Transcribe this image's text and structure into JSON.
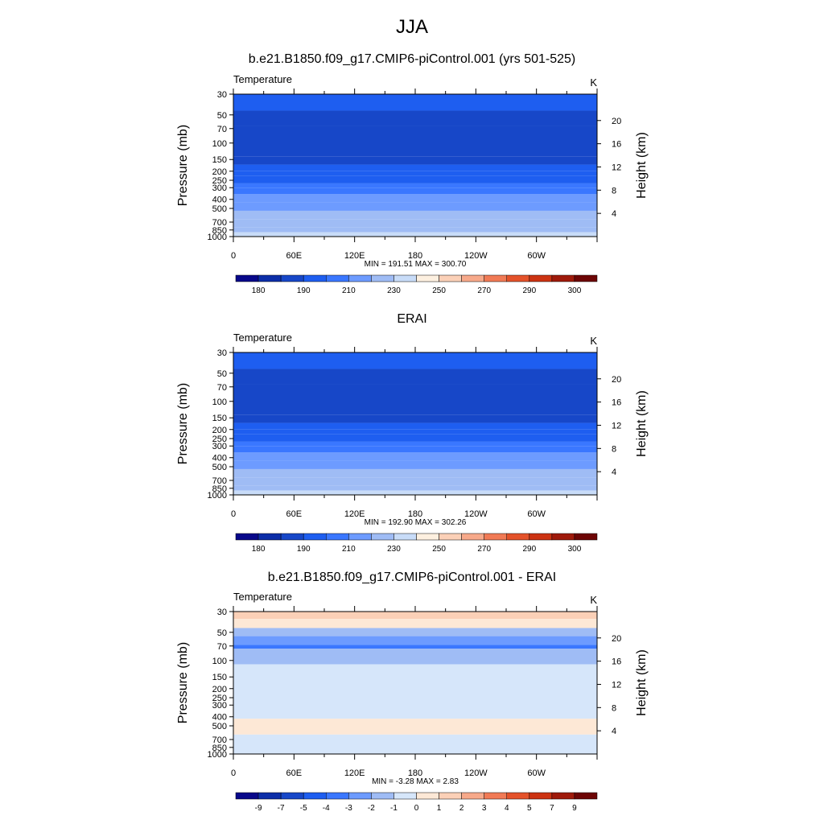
{
  "page": {
    "title": "JJA"
  },
  "panels": [
    {
      "title": "b.e21.B1850.f09_g17.CMIP6-piControl.001 (yrs 501-525)",
      "variable": "Temperature",
      "units": "K",
      "minmax": "MIN = 191.51  MAX = 300.70",
      "bar_labels": [
        "180",
        "190",
        "210",
        "230",
        "250",
        "270",
        "290",
        "300"
      ]
    },
    {
      "title": "ERAI",
      "variable": "Temperature",
      "units": "K",
      "minmax": "MIN = 192.90  MAX = 302.26",
      "bar_labels": [
        "180",
        "190",
        "210",
        "230",
        "250",
        "270",
        "290",
        "300"
      ]
    },
    {
      "title": "b.e21.B1850.f09_g17.CMIP6-piControl.001 - ERAI",
      "variable": "Temperature",
      "units": "K",
      "minmax": "MIN =  -3.28  MAX =   2.83",
      "bar_labels": [
        "-9",
        "-7",
        "-5",
        "-4",
        "-3",
        "-2",
        "-1",
        "0",
        "1",
        "2",
        "3",
        "4",
        "5",
        "7",
        "9"
      ]
    }
  ],
  "axes": {
    "ylabel_left": "Pressure (mb)",
    "ylabel_right": "Height (km)",
    "pressure_ticks": [
      "30",
      "50",
      "70",
      "100",
      "150",
      "200",
      "250",
      "300",
      "400",
      "500",
      "700",
      "850",
      "1000"
    ],
    "height_ticks": [
      "20",
      "16",
      "12",
      "8",
      "4"
    ],
    "lon_ticks": [
      "0",
      "60E",
      "120E",
      "180",
      "120W",
      "60W"
    ]
  },
  "colors": {
    "temp_palette": [
      "#08088a",
      "#0c2ea8",
      "#1747c8",
      "#1e5ef0",
      "#3a77ff",
      "#6d9bff",
      "#9fbcf5",
      "#c8dcf8",
      "#fdf0e0",
      "#fbd0b7",
      "#f7a98a",
      "#f17a55",
      "#e4522a",
      "#cc3312",
      "#9f1a0b",
      "#6d0505"
    ],
    "diff_palette": [
      "#08088a",
      "#0c2ea8",
      "#1747c8",
      "#1e5ef0",
      "#3a77ff",
      "#6d9bff",
      "#9fbcf5",
      "#d6e6fa",
      "#fde8d6",
      "#fbd0b7",
      "#f7a98a",
      "#f17a55",
      "#e4522a",
      "#cc3312",
      "#9f1a0b",
      "#6d0505"
    ]
  },
  "chart_data": [
    {
      "type": "heatmap",
      "title": "b.e21.B1850.f09_g17.CMIP6-piControl.001 (yrs 501-525)",
      "xlabel": "",
      "ylabel": "Pressure (mb)",
      "ylabel_right": "Height (km)",
      "x_ticks": [
        "0",
        "60E",
        "120E",
        "180",
        "120W",
        "60W"
      ],
      "xlim": [
        0,
        360
      ],
      "ylim": [
        1000,
        30
      ],
      "y_scale": "log",
      "levels": [
        180,
        190,
        210,
        230,
        250,
        270,
        290,
        300
      ],
      "units": "K",
      "min": 191.51,
      "max": 300.7,
      "bands": [
        {
          "p_top": 30,
          "p_bottom": 45,
          "value": 215
        },
        {
          "p_top": 45,
          "p_bottom": 65,
          "value": 208
        },
        {
          "p_top": 65,
          "p_bottom": 140,
          "value": 200
        },
        {
          "p_top": 140,
          "p_bottom": 170,
          "value": 207
        },
        {
          "p_top": 170,
          "p_bottom": 200,
          "value": 214
        },
        {
          "p_top": 200,
          "p_bottom": 225,
          "value": 218
        },
        {
          "p_top": 225,
          "p_bottom": 270,
          "value": 225
        },
        {
          "p_top": 270,
          "p_bottom": 300,
          "value": 235
        },
        {
          "p_top": 300,
          "p_bottom": 350,
          "value": 245
        },
        {
          "p_top": 350,
          "p_bottom": 430,
          "value": 255
        },
        {
          "p_top": 430,
          "p_bottom": 530,
          "value": 262
        },
        {
          "p_top": 530,
          "p_bottom": 650,
          "value": 270
        },
        {
          "p_top": 650,
          "p_bottom": 800,
          "value": 278
        },
        {
          "p_top": 800,
          "p_bottom": 900,
          "value": 286
        },
        {
          "p_top": 900,
          "p_bottom": 1000,
          "value": 294
        }
      ]
    },
    {
      "type": "heatmap",
      "title": "ERAI",
      "xlabel": "",
      "ylabel": "Pressure (mb)",
      "ylabel_right": "Height (km)",
      "x_ticks": [
        "0",
        "60E",
        "120E",
        "180",
        "120W",
        "60W"
      ],
      "xlim": [
        0,
        360
      ],
      "ylim": [
        1000,
        30
      ],
      "y_scale": "log",
      "levels": [
        180,
        190,
        210,
        230,
        250,
        270,
        290,
        300
      ],
      "units": "K",
      "min": 192.9,
      "max": 302.26,
      "bands": [
        {
          "p_top": 30,
          "p_bottom": 45,
          "value": 215
        },
        {
          "p_top": 45,
          "p_bottom": 65,
          "value": 208
        },
        {
          "p_top": 65,
          "p_bottom": 140,
          "value": 200
        },
        {
          "p_top": 140,
          "p_bottom": 170,
          "value": 207
        },
        {
          "p_top": 170,
          "p_bottom": 200,
          "value": 214
        },
        {
          "p_top": 200,
          "p_bottom": 225,
          "value": 218
        },
        {
          "p_top": 225,
          "p_bottom": 270,
          "value": 225
        },
        {
          "p_top": 270,
          "p_bottom": 300,
          "value": 235
        },
        {
          "p_top": 300,
          "p_bottom": 350,
          "value": 245
        },
        {
          "p_top": 350,
          "p_bottom": 430,
          "value": 255
        },
        {
          "p_top": 430,
          "p_bottom": 530,
          "value": 262
        },
        {
          "p_top": 530,
          "p_bottom": 650,
          "value": 270
        },
        {
          "p_top": 650,
          "p_bottom": 800,
          "value": 278
        },
        {
          "p_top": 800,
          "p_bottom": 900,
          "value": 286
        },
        {
          "p_top": 900,
          "p_bottom": 1000,
          "value": 295
        }
      ]
    },
    {
      "type": "heatmap",
      "title": "b.e21.B1850.f09_g17.CMIP6-piControl.001 - ERAI",
      "xlabel": "",
      "ylabel": "Pressure (mb)",
      "ylabel_right": "Height (km)",
      "x_ticks": [
        "0",
        "60E",
        "120E",
        "180",
        "120W",
        "60W"
      ],
      "xlim": [
        0,
        360
      ],
      "ylim": [
        1000,
        30
      ],
      "y_scale": "log",
      "levels": [
        -9,
        -7,
        -5,
        -4,
        -3,
        -2,
        -1,
        0,
        1,
        2,
        3,
        4,
        5,
        7,
        9
      ],
      "units": "K",
      "min": -3.28,
      "max": 2.83,
      "bands": [
        {
          "p_top": 30,
          "p_bottom": 36,
          "value": 1.5
        },
        {
          "p_top": 36,
          "p_bottom": 45,
          "value": 0.5
        },
        {
          "p_top": 45,
          "p_bottom": 55,
          "value": -1.5
        },
        {
          "p_top": 55,
          "p_bottom": 68,
          "value": -2.5
        },
        {
          "p_top": 68,
          "p_bottom": 75,
          "value": -3.5
        },
        {
          "p_top": 75,
          "p_bottom": 110,
          "value": -1.5
        },
        {
          "p_top": 110,
          "p_bottom": 420,
          "value": -0.5
        },
        {
          "p_top": 420,
          "p_bottom": 620,
          "value": 0.3
        },
        {
          "p_top": 620,
          "p_bottom": 1000,
          "value": -0.5
        }
      ]
    }
  ]
}
